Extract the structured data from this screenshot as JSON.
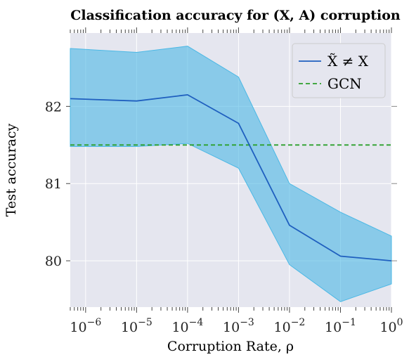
{
  "chart_data": {
    "type": "line",
    "title": "Classification accuracy for (X, A) corruption",
    "xlabel": "Corruption Rate, ρ",
    "ylabel": "Test accuracy",
    "xscale": "log",
    "xlim": [
      5e-07,
      1
    ],
    "ylim": [
      79.4,
      82.95
    ],
    "grid": true,
    "legend_position": "top-right",
    "x_tick_labels": [
      "10−6",
      "10−5",
      "10−4",
      "10−3",
      "10−2",
      "10−1",
      "100"
    ],
    "y_ticks": [
      80,
      81,
      82
    ],
    "x": [
      5e-07,
      1e-05,
      0.0001,
      0.001,
      0.01,
      0.1,
      1
    ],
    "series": [
      {
        "name": "X̃ ≠ X",
        "values": [
          82.1,
          82.07,
          82.15,
          81.78,
          80.46,
          80.06,
          80.0
        ],
        "upper": [
          82.75,
          82.7,
          82.78,
          82.38,
          81.0,
          80.63,
          80.32
        ],
        "lower": [
          81.48,
          81.48,
          81.52,
          81.2,
          79.95,
          79.47,
          79.7
        ],
        "color": "#1f5fbf",
        "band_color": "#4bb8e5"
      },
      {
        "name": "GCN",
        "values": [
          81.5,
          81.5,
          81.5,
          81.5,
          81.5,
          81.5,
          81.5
        ],
        "style": "dashed",
        "color": "#2ca02c"
      }
    ]
  },
  "colors": {
    "plot_background": "#e5e6ef",
    "grid": "#ffffff"
  }
}
